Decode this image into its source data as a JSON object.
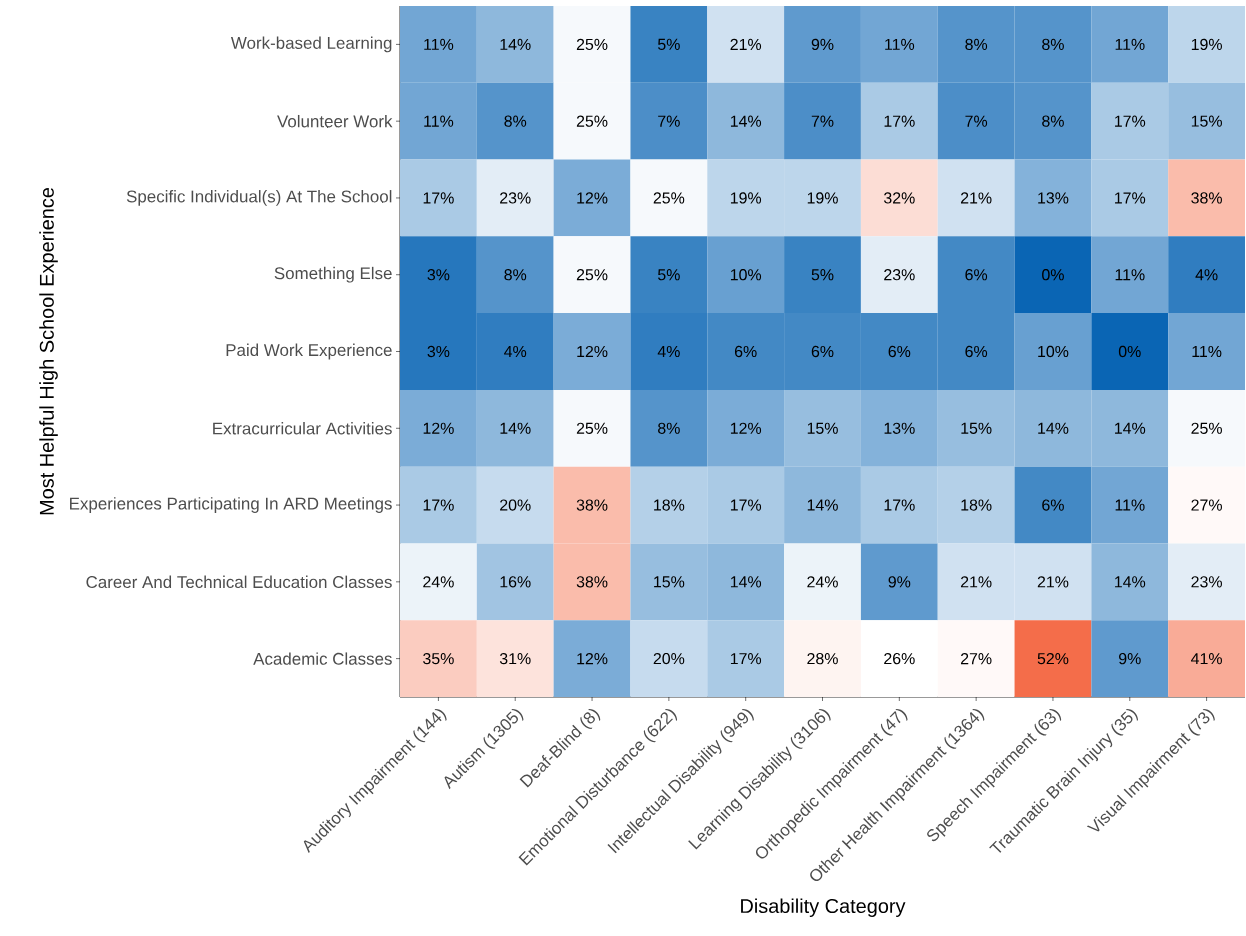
{
  "chart_data": {
    "type": "heatmap",
    "xlabel": "Disability Category",
    "ylabel": "Most Helpful High School Experience",
    "categories": [
      "Auditory Impairment (144)",
      "Autism (1305)",
      "Deaf-Blind (8)",
      "Emotional Disturbance (622)",
      "Intellectual Disability (949)",
      "Learning Disability (3106)",
      "Orthopedic Impairment (47)",
      "Other Health Impairment (1364)",
      "Speech Impairment (63)",
      "Traumatic Brain Injury (35)",
      "Visual Impairment (73)"
    ],
    "y_categories": [
      "Work-based Learning",
      "Volunteer Work",
      "Specific Individual(s) At The School",
      "Something Else",
      "Paid Work Experience",
      "Extracurricular Activities",
      "Experiences Participating In ARD Meetings",
      "Career And Technical Education Classes",
      "Academic Classes"
    ],
    "cells": [
      [
        11,
        14,
        25,
        5,
        21,
        9,
        11,
        8,
        8,
        11,
        19
      ],
      [
        11,
        8,
        25,
        7,
        14,
        7,
        17,
        7,
        8,
        17,
        15
      ],
      [
        17,
        23,
        12,
        25,
        19,
        19,
        32,
        21,
        13,
        17,
        38
      ],
      [
        3,
        8,
        25,
        5,
        10,
        5,
        23,
        6,
        0,
        11,
        4
      ],
      [
        3,
        4,
        12,
        4,
        6,
        6,
        6,
        6,
        10,
        0,
        11
      ],
      [
        12,
        14,
        25,
        8,
        12,
        15,
        13,
        15,
        14,
        14,
        25
      ],
      [
        17,
        20,
        38,
        18,
        17,
        14,
        17,
        18,
        6,
        11,
        27
      ],
      [
        24,
        16,
        38,
        15,
        14,
        24,
        9,
        21,
        21,
        14,
        23
      ],
      [
        35,
        31,
        12,
        20,
        17,
        28,
        26,
        27,
        52,
        9,
        41
      ]
    ],
    "cell_labels": [
      [
        "11%",
        "14%",
        "25%",
        "5%",
        "21%",
        "9%",
        "11%",
        "8%",
        "8%",
        "11%",
        "19%"
      ],
      [
        "11%",
        "8%",
        "25%",
        "7%",
        "14%",
        "7%",
        "17%",
        "7%",
        "8%",
        "17%",
        "15%"
      ],
      [
        "17%",
        "23%",
        "12%",
        "25%",
        "19%",
        "19%",
        "32%",
        "21%",
        "13%",
        "17%",
        "38%"
      ],
      [
        "3%",
        "8%",
        "25%",
        "5%",
        "10%",
        "5%",
        "23%",
        "6%",
        "0%",
        "11%",
        "4%"
      ],
      [
        "3%",
        "4%",
        "12%",
        "4%",
        "6%",
        "6%",
        "6%",
        "6%",
        "10%",
        "0%",
        "11%"
      ],
      [
        "12%",
        "14%",
        "25%",
        "8%",
        "12%",
        "15%",
        "13%",
        "15%",
        "14%",
        "14%",
        "25%"
      ],
      [
        "17%",
        "20%",
        "38%",
        "18%",
        "17%",
        "14%",
        "17%",
        "18%",
        "6%",
        "11%",
        "27%"
      ],
      [
        "24%",
        "16%",
        "38%",
        "15%",
        "14%",
        "24%",
        "9%",
        "21%",
        "21%",
        "14%",
        "23%"
      ],
      [
        "35%",
        "31%",
        "12%",
        "20%",
        "17%",
        "28%",
        "26%",
        "27%",
        "52%",
        "9%",
        "41%"
      ]
    ]
  }
}
